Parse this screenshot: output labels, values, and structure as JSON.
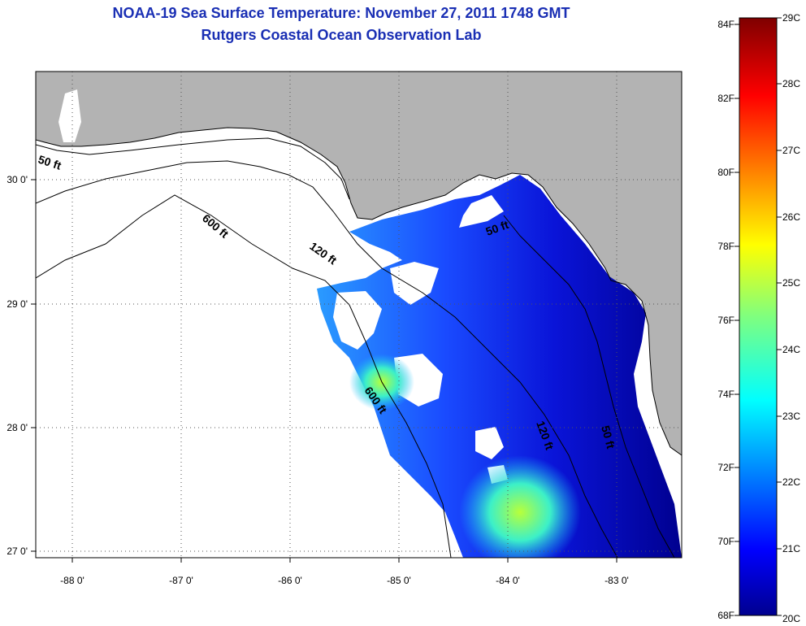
{
  "title": "NOAA-19 Sea Surface Temperature:  November 27, 2011 1748 GMT",
  "subtitle": "Rutgers Coastal Ocean Observation Lab",
  "map": {
    "lon_labels": [
      "-88 0'",
      "-87 0'",
      "-86 0'",
      "-85 0'",
      "-84 0'",
      "-83 0'"
    ],
    "lat_labels": [
      "30 0'",
      "29 0'",
      "28 0'",
      "27 0'"
    ],
    "contour_labels": [
      "50 ft",
      "600 ft",
      "120 ft",
      "50 ft",
      "600 ft",
      "120 ft",
      "50 ft"
    ],
    "land_color": "#b3b3b3",
    "no_data_color": "#ffffff"
  },
  "colorbar": {
    "fahrenheit_labels": [
      "84F",
      "82F",
      "80F",
      "78F",
      "76F",
      "74F",
      "72F",
      "70F",
      "68F"
    ],
    "celsius_labels": [
      "29C",
      "28C",
      "27C",
      "26C",
      "25C",
      "24C",
      "23C",
      "22C",
      "21C",
      "20C"
    ],
    "range_c": [
      20,
      29
    ],
    "range_f": [
      68,
      84
    ],
    "colormap": "jet"
  }
}
